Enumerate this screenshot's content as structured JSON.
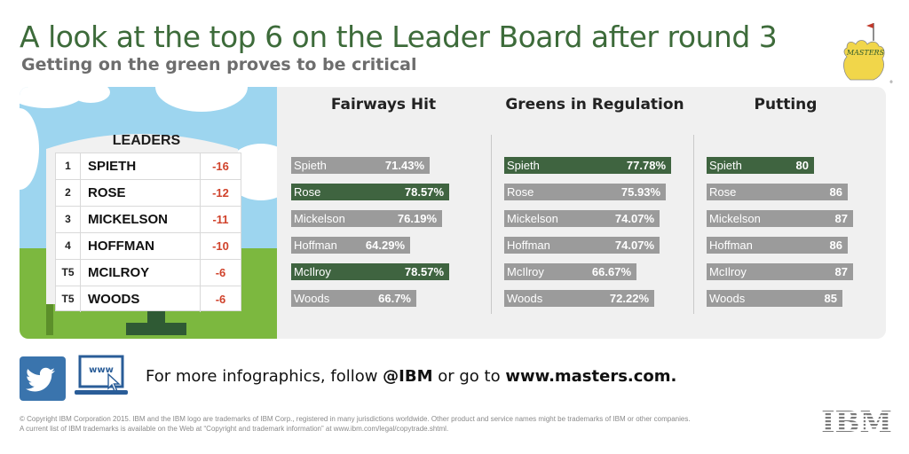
{
  "header": {
    "title": "A look at the top 6 on the Leader Board after round 3",
    "subtitle": "Getting on the green proves to be critical"
  },
  "logo": {
    "text": "MASTERS"
  },
  "leaderboard": {
    "title": "LEADERS",
    "rows": [
      {
        "pos": "1",
        "name": "SPIETH",
        "score": "-16"
      },
      {
        "pos": "2",
        "name": "ROSE",
        "score": "-12"
      },
      {
        "pos": "3",
        "name": "MICKELSON",
        "score": "-11"
      },
      {
        "pos": "4",
        "name": "HOFFMAN",
        "score": "-10"
      },
      {
        "pos": "T5",
        "name": "MCILROY",
        "score": "-6"
      },
      {
        "pos": "T5",
        "name": "WOODS",
        "score": "-6"
      }
    ]
  },
  "chart_data": [
    {
      "type": "bar",
      "title": "Fairways Hit",
      "categories": [
        "Spieth",
        "Rose",
        "Mickelson",
        "Hoffman",
        "McIlroy",
        "Woods"
      ],
      "values": [
        71.43,
        78.57,
        76.19,
        64.29,
        78.57,
        66.7
      ],
      "labels": [
        "71.43%",
        "78.57%",
        "76.19%",
        "64.29%",
        "78.57%",
        "66.7%"
      ],
      "highlight": [
        false,
        true,
        false,
        false,
        true,
        false
      ]
    },
    {
      "type": "bar",
      "title": "Greens in Regulation",
      "categories": [
        "Spieth",
        "Rose",
        "Mickelson",
        "Hoffman",
        "McIlroy",
        "Woods"
      ],
      "values": [
        77.78,
        75.93,
        74.07,
        74.07,
        66.67,
        72.22
      ],
      "labels": [
        "77.78%",
        "75.93%",
        "74.07%",
        "74.07%",
        "66.67%",
        "72.22%"
      ],
      "highlight": [
        true,
        false,
        false,
        false,
        false,
        false
      ]
    },
    {
      "type": "bar",
      "title": "Putting",
      "categories": [
        "Spieth",
        "Rose",
        "Mickelson",
        "Hoffman",
        "McIlroy",
        "Woods"
      ],
      "values": [
        80,
        86,
        87,
        86,
        87,
        85
      ],
      "labels": [
        "80",
        "86",
        "87",
        "86",
        "87",
        "85"
      ],
      "highlight": [
        true,
        false,
        false,
        false,
        false,
        false
      ]
    }
  ],
  "colors": {
    "title_green": "#3d6b3a",
    "bar_gray": "#9b9b9b",
    "bar_highlight": "#3f6440",
    "score_red": "#d0422b"
  },
  "footer": {
    "follow_prefix": "For more infographics, follow ",
    "follow_handle": "@IBM",
    "follow_middle": " or go to ",
    "follow_site": "www.masters.com.",
    "www_icon_text": "www",
    "copyright_line1": "© Copyright IBM Corporation 2015. IBM and the IBM logo are trademarks of IBM Corp., registered in many jurisdictions worldwide. Other product and service names might be trademarks of IBM or other companies.",
    "copyright_line2": "A current list of IBM trademarks is available on the Web at “Copyright and trademark information” at www.ibm.com/legal/copytrade.shtml.",
    "ibm_logo": "IBM"
  }
}
